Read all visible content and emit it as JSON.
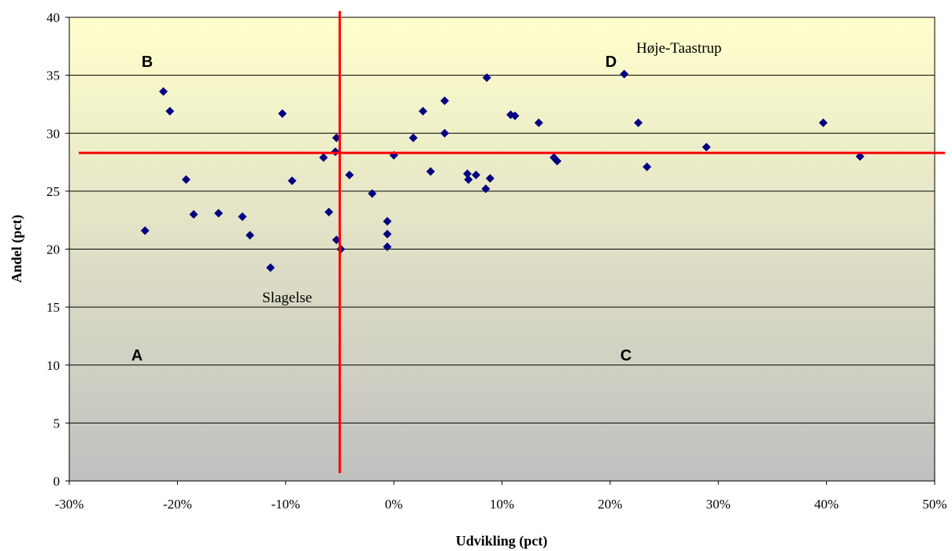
{
  "chart_data": {
    "type": "scatter",
    "title": "",
    "xlabel": "Udvikling (pct)",
    "ylabel": "Andel (pct)",
    "xlim": [
      -30,
      50
    ],
    "ylim": [
      0,
      40
    ],
    "x_ticks": [
      -30,
      -20,
      -10,
      0,
      10,
      20,
      30,
      40,
      50
    ],
    "x_tick_labels": [
      "-30%",
      "-20%",
      "-10%",
      "0%",
      "10%",
      "20%",
      "30%",
      "40%",
      "50%"
    ],
    "y_ticks": [
      0,
      5,
      10,
      15,
      20,
      25,
      30,
      35,
      40
    ],
    "y_tick_labels": [
      "0",
      "5",
      "10",
      "15",
      "20",
      "25",
      "30",
      "35",
      "40"
    ],
    "grid": "horizontal",
    "background": "gradient light yellow (top) to gray (bottom)",
    "marker": {
      "shape": "diamond",
      "color": "#000080"
    },
    "reference_lines": {
      "color": "#ff0000",
      "vertical_x": -5.0,
      "horizontal_y": 28.3
    },
    "quadrant_labels": [
      "A",
      "B",
      "C",
      "D"
    ],
    "annotations": [
      "Høje-Taastrup",
      "Slagelse"
    ],
    "series": [
      {
        "points": [
          {
            "x": -23.0,
            "y": 21.6
          },
          {
            "x": -21.3,
            "y": 33.6
          },
          {
            "x": -20.7,
            "y": 31.9
          },
          {
            "x": -19.2,
            "y": 26.0
          },
          {
            "x": -18.5,
            "y": 23.0
          },
          {
            "x": -16.2,
            "y": 23.1
          },
          {
            "x": -14.0,
            "y": 22.8
          },
          {
            "x": -13.3,
            "y": 21.2
          },
          {
            "x": -11.4,
            "y": 18.4
          },
          {
            "x": -10.3,
            "y": 31.7
          },
          {
            "x": -9.4,
            "y": 25.9
          },
          {
            "x": -6.5,
            "y": 27.9
          },
          {
            "x": -6.0,
            "y": 23.2
          },
          {
            "x": -5.4,
            "y": 28.4
          },
          {
            "x": -5.3,
            "y": 29.6
          },
          {
            "x": -5.3,
            "y": 20.8
          },
          {
            "x": -4.9,
            "y": 20.0
          },
          {
            "x": -4.1,
            "y": 26.4
          },
          {
            "x": -2.0,
            "y": 24.8
          },
          {
            "x": -0.6,
            "y": 22.4
          },
          {
            "x": -0.6,
            "y": 21.3
          },
          {
            "x": -0.6,
            "y": 20.2
          },
          {
            "x": 0.0,
            "y": 28.1
          },
          {
            "x": 1.8,
            "y": 29.6
          },
          {
            "x": 2.7,
            "y": 31.9
          },
          {
            "x": 3.4,
            "y": 26.7
          },
          {
            "x": 4.7,
            "y": 32.8
          },
          {
            "x": 4.7,
            "y": 30.0
          },
          {
            "x": 6.8,
            "y": 26.5
          },
          {
            "x": 6.9,
            "y": 26.0
          },
          {
            "x": 7.6,
            "y": 26.4
          },
          {
            "x": 8.5,
            "y": 25.2
          },
          {
            "x": 8.6,
            "y": 34.8
          },
          {
            "x": 8.9,
            "y": 26.1
          },
          {
            "x": 10.8,
            "y": 31.6
          },
          {
            "x": 11.2,
            "y": 31.5
          },
          {
            "x": 13.4,
            "y": 30.9
          },
          {
            "x": 14.8,
            "y": 27.9
          },
          {
            "x": 15.1,
            "y": 27.6
          },
          {
            "x": 21.3,
            "y": 35.1
          },
          {
            "x": 22.6,
            "y": 30.9
          },
          {
            "x": 23.4,
            "y": 27.1
          },
          {
            "x": 28.9,
            "y": 28.8
          },
          {
            "x": 39.7,
            "y": 30.9
          },
          {
            "x": 43.1,
            "y": 28.0
          }
        ]
      }
    ]
  }
}
